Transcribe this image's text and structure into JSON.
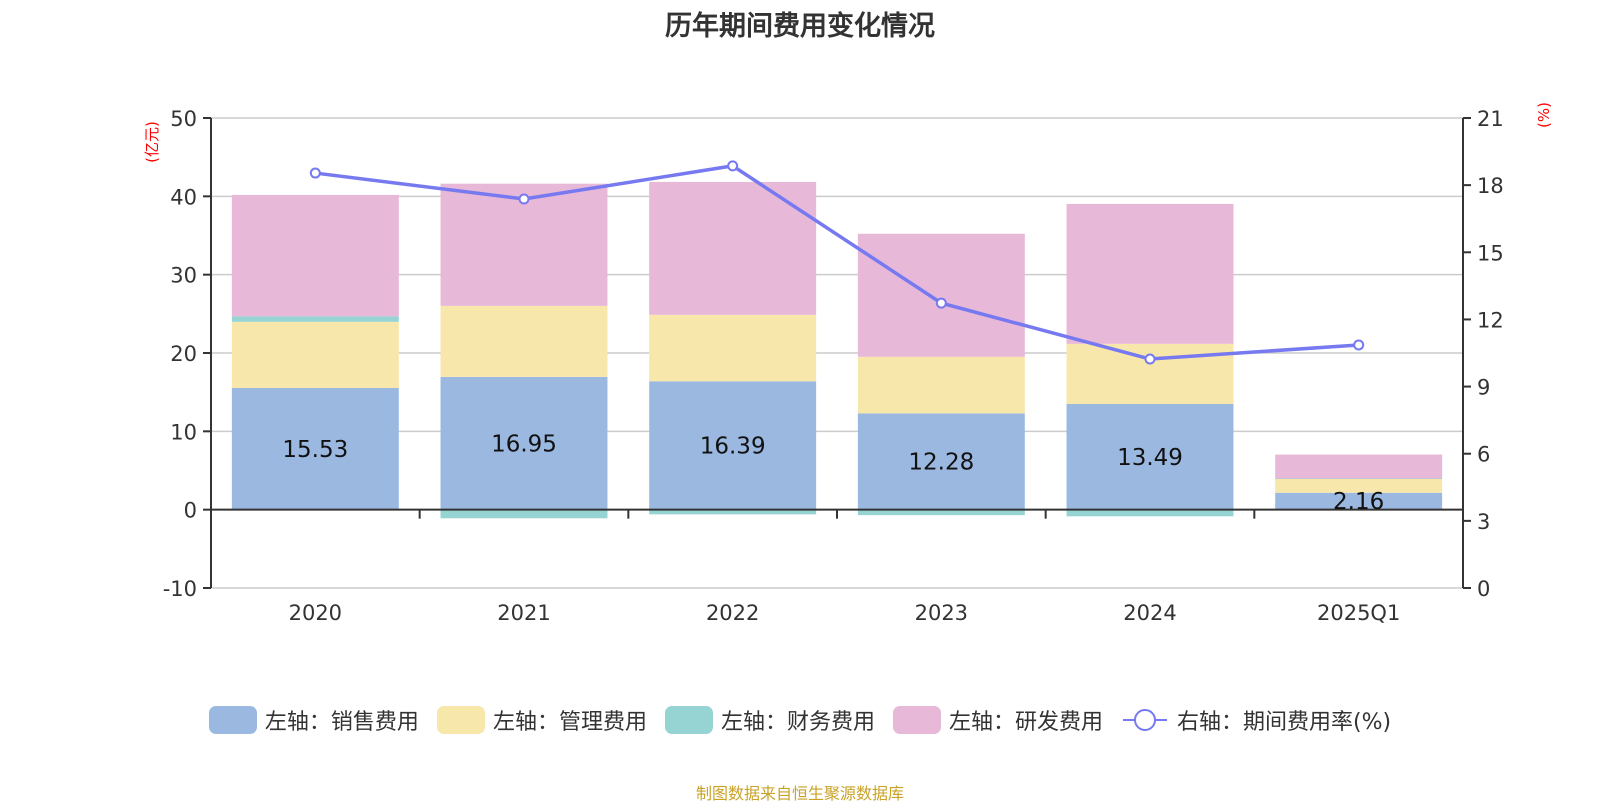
{
  "chart_data": {
    "type": "bar",
    "stacked": true,
    "title": "历年期间费用变化情况",
    "categories": [
      "2020",
      "2021",
      "2022",
      "2023",
      "2024",
      "2025Q1"
    ],
    "left_axis": {
      "unit": "(亿元)",
      "ylim": [
        -10,
        50
      ],
      "ticks": [
        -10,
        0,
        10,
        20,
        30,
        40,
        50
      ]
    },
    "right_axis": {
      "unit": "(%)",
      "ylim": [
        0,
        21
      ],
      "ticks": [
        0,
        3,
        6,
        9,
        12,
        15,
        18,
        21
      ]
    },
    "grid": true,
    "legend_position": "bottom",
    "series": [
      {
        "name": "左轴：销售费用",
        "axis": "left",
        "type": "bar",
        "color": "#9bb8e1",
        "values": [
          15.53,
          16.95,
          16.39,
          12.28,
          13.49,
          2.16
        ],
        "show_labels": true
      },
      {
        "name": "左轴：管理费用",
        "axis": "left",
        "type": "bar",
        "color": "#f8e7aa",
        "values": [
          8.45,
          9.07,
          8.48,
          7.24,
          7.68,
          1.8
        ]
      },
      {
        "name": "左轴：财务费用",
        "axis": "left",
        "type": "bar",
        "color": "#96d4d4",
        "values": [
          0.7,
          -1.1,
          -0.6,
          -0.7,
          -0.85,
          0.02
        ]
      },
      {
        "name": "左轴：研发费用",
        "axis": "left",
        "type": "bar",
        "color": "#e7b8d8",
        "values": [
          15.5,
          15.6,
          16.97,
          15.7,
          17.86,
          3.05
        ]
      },
      {
        "name": "右轴：期间费用率(%)",
        "axis": "right",
        "type": "line",
        "color": "#7679f0",
        "values": [
          18.54,
          17.38,
          18.86,
          12.73,
          10.23,
          10.86
        ]
      }
    ]
  },
  "source_note": "制图数据来自恒生聚源数据库"
}
